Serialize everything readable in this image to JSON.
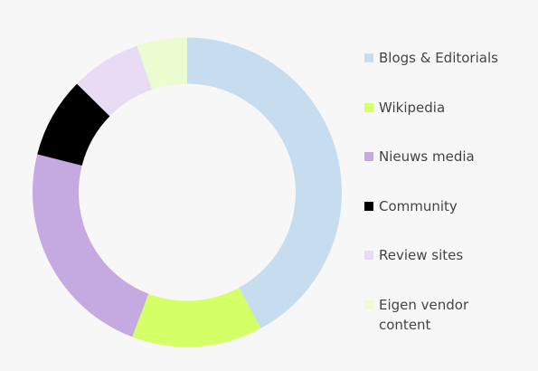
{
  "chart_data": {
    "type": "pie",
    "variant": "donut",
    "legend_placement": "right",
    "categories": [
      "Blogs & Editorials",
      "Wikipedia",
      "Nieuws media",
      "Community",
      "Review sites",
      "Eigen vendor content"
    ],
    "values": [
      40,
      13,
      22,
      8,
      7,
      5
    ],
    "colors": [
      "#c6dcef",
      "#d4ff66",
      "#c5a9e1",
      "#000000",
      "#e8dcf4",
      "#eafcd0"
    ]
  }
}
